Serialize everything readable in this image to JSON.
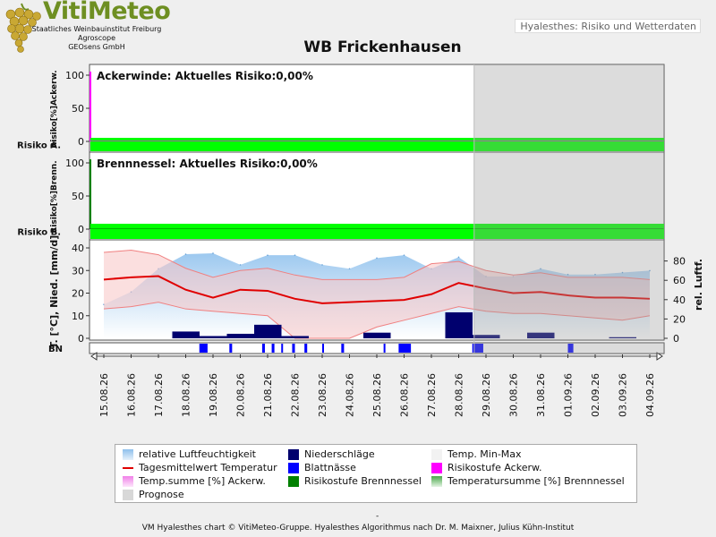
{
  "header": {
    "logo_title": "VitiMeteo",
    "logo_lines": [
      "Staatliches Weinbauinstitut Freiburg",
      "Agroscope",
      "GEOsens GmbH"
    ],
    "subtitle_box": "Hyalesthes: Risiko und Wetterdaten"
  },
  "chart_title": "WB Frickenhausen",
  "colors": {
    "risk_green": "#00ff00",
    "temp_line": "#e00000",
    "humidity_fill": "#9cc8ef",
    "precip": "#00006e",
    "leaf_wet": "#0000ff",
    "prognosis": "#d8d8d8",
    "ackerw_marker": "#ff00ff",
    "brenn_marker": "#008000"
  },
  "chart_data": [
    {
      "type": "bar",
      "panel": "Ackerwinde",
      "title": "Ackerwinde: Aktuelles Risiko:0,00%",
      "ylabel": "Risiko[%]Ackerw.",
      "yticks": [
        "100",
        "50",
        "0"
      ],
      "ylim": [
        0,
        100
      ],
      "row_label": "Risiko A.",
      "risk_values": [
        0,
        0,
        0,
        0,
        0,
        0,
        0,
        0,
        0,
        0,
        0,
        0,
        0,
        0,
        0,
        0,
        0,
        0,
        0,
        0,
        0
      ]
    },
    {
      "type": "bar",
      "panel": "Brennnessel",
      "title": "Brennnessel: Aktuelles Risiko:0,00%",
      "ylabel": "Risiko[%]Brenn.",
      "yticks": [
        "100",
        "50",
        "0"
      ],
      "ylim": [
        0,
        100
      ],
      "row_label": "Risiko B.",
      "risk_values": [
        0,
        0,
        0,
        0,
        0,
        0,
        0,
        0,
        0,
        0,
        0,
        0,
        0,
        0,
        0,
        0,
        0,
        0,
        0,
        0,
        0
      ]
    },
    {
      "type": "line",
      "panel": "weather",
      "ylabel_left": "T. [°C], Nied. [mm/d]",
      "ylabel_right": "rel. Luftf.",
      "yticks_left": [
        "40",
        "30",
        "20",
        "10",
        "0"
      ],
      "yticks_right": [
        "80",
        "60",
        "40",
        "20",
        "0"
      ],
      "ylim_left": [
        0,
        40
      ],
      "ylim_right": [
        0,
        100
      ],
      "row_label": "BN",
      "x": [
        "15.08.26",
        "16.08.26",
        "17.08.26",
        "18.08.26",
        "19.08.26",
        "20.08.26",
        "21.08.26",
        "22.08.26",
        "23.08.26",
        "24.08.26",
        "25.08.26",
        "26.08.26",
        "27.08.26",
        "28.08.26",
        "29.08.26",
        "30.08.26",
        "31.08.26",
        "01.09.26",
        "02.09.26",
        "03.09.26",
        "04.09.26"
      ],
      "humidity": [
        35,
        48,
        72,
        87,
        88,
        76,
        86,
        86,
        76,
        72,
        83,
        86,
        72,
        84,
        64,
        64,
        72,
        66,
        66,
        68,
        70
      ],
      "temp_mean": [
        26,
        27,
        27.5,
        21.5,
        18,
        21.5,
        21,
        17.5,
        15.5,
        16,
        16.5,
        17,
        19.5,
        24.5,
        22,
        20,
        20.5,
        19,
        18,
        18,
        17.5
      ],
      "temp_min": [
        13,
        14,
        16,
        13,
        12,
        11,
        10,
        0,
        0,
        0,
        5,
        8,
        11,
        14,
        12,
        11,
        11,
        10,
        9,
        8,
        10
      ],
      "temp_max": [
        38,
        39,
        37,
        31,
        27,
        30,
        31,
        28,
        26,
        26,
        26,
        27,
        33,
        34,
        30,
        28,
        29,
        27,
        27,
        27,
        26
      ],
      "precipitation": [
        0,
        0,
        0,
        3,
        1,
        2,
        6,
        1,
        0,
        0,
        2.5,
        0,
        0,
        11.5,
        1.5,
        0,
        2.5,
        0,
        0,
        0.5,
        0
      ],
      "leaf_wetness_segments": [
        [
          4,
          4.3
        ],
        [
          5.1,
          5.2
        ],
        [
          6.3,
          6.4
        ],
        [
          6.65,
          6.75
        ],
        [
          7.0,
          7.05
        ],
        [
          7.4,
          7.5
        ],
        [
          7.85,
          7.95
        ],
        [
          8.5,
          8.55
        ],
        [
          9.2,
          9.3
        ],
        [
          10.75,
          10.8
        ],
        [
          11.3,
          11.75
        ],
        [
          14.0,
          14.4
        ],
        [
          17.5,
          17.7
        ]
      ],
      "prognosis_start_index": 14
    }
  ],
  "legend": [
    {
      "label": "relative Luftfeuchtigkeit",
      "icon": "gradient-blue"
    },
    {
      "label": "Niederschläge",
      "icon": "navy-square"
    },
    {
      "label": "Temp. Min-Max",
      "icon": "pale-square"
    },
    {
      "label": "Tagesmittelwert Temperatur",
      "icon": "red-line"
    },
    {
      "label": "Blattnässe",
      "icon": "blue-square"
    },
    {
      "label": "Risikostufe Ackerw.",
      "icon": "magenta-square"
    },
    {
      "label": "Temp.summe [%] Ackerw.",
      "icon": "gradient-pink"
    },
    {
      "label": "Risikostufe Brennnessel",
      "icon": "green-square"
    },
    {
      "label": "Temperatursumme [%] Brennnessel",
      "icon": "gradient-green"
    },
    {
      "label": "Prognose",
      "icon": "grey-square"
    }
  ],
  "footer": {
    "dash": "-",
    "text": "VM Hyalesthes chart © VitiMeteo-Gruppe. Hyalesthes Algorithmus nach Dr. M. Maixner, Julius Kühn-Institut"
  }
}
